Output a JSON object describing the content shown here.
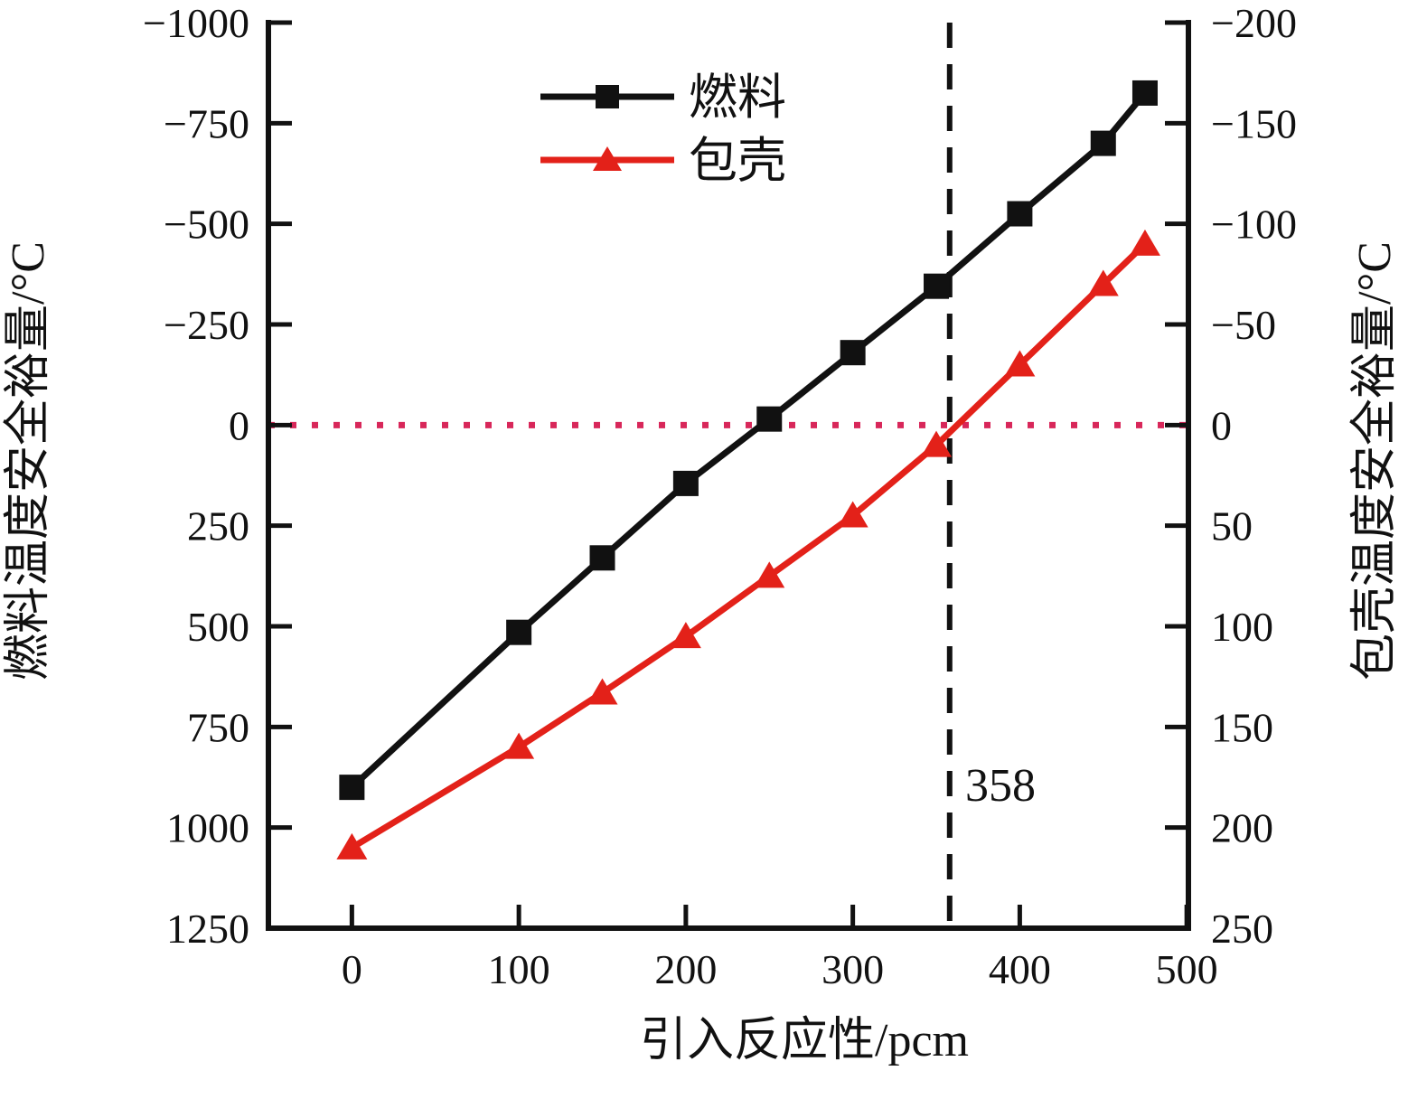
{
  "chart_data": {
    "type": "line",
    "x": [
      0,
      100,
      150,
      200,
      250,
      300,
      350,
      400,
      450,
      475
    ],
    "series": [
      {
        "name": "燃料",
        "axis": "left",
        "color": "#111111",
        "marker": "square",
        "values": [
          900,
          515,
          330,
          145,
          -15,
          -180,
          -345,
          -525,
          -700,
          -825
        ]
      },
      {
        "name": "包壳",
        "axis": "right",
        "color": "#e32119",
        "marker": "triangle",
        "values": [
          210,
          160,
          133,
          105,
          75,
          45,
          10,
          -30,
          -70,
          -90
        ]
      }
    ],
    "xlabel": "引入反应性/pcm",
    "ylabel_left": "燃料温度安全裕量/°C",
    "ylabel_right": "包壳温度安全裕量/°C",
    "x_ticks": [
      0,
      100,
      200,
      300,
      400,
      500
    ],
    "x_range": [
      -50,
      501
    ],
    "left_ticks": [
      -1000,
      -750,
      -500,
      -250,
      0,
      250,
      500,
      750,
      1000,
      1250
    ],
    "left_range": [
      -1000,
      1250
    ],
    "left_axis_inverted": true,
    "right_ticks": [
      -200,
      -150,
      -100,
      -50,
      0,
      50,
      100,
      150,
      200,
      250
    ],
    "right_range": [
      -200,
      250
    ],
    "right_axis_inverted": true,
    "grid": false,
    "legend_position": "upper-center-inside",
    "annotations": {
      "vline": {
        "x": 358,
        "label": "358",
        "style": "dashed",
        "color": "#111111"
      },
      "hline_zero": {
        "value": 0,
        "style": "dotted",
        "color": "#d8275a"
      }
    }
  }
}
